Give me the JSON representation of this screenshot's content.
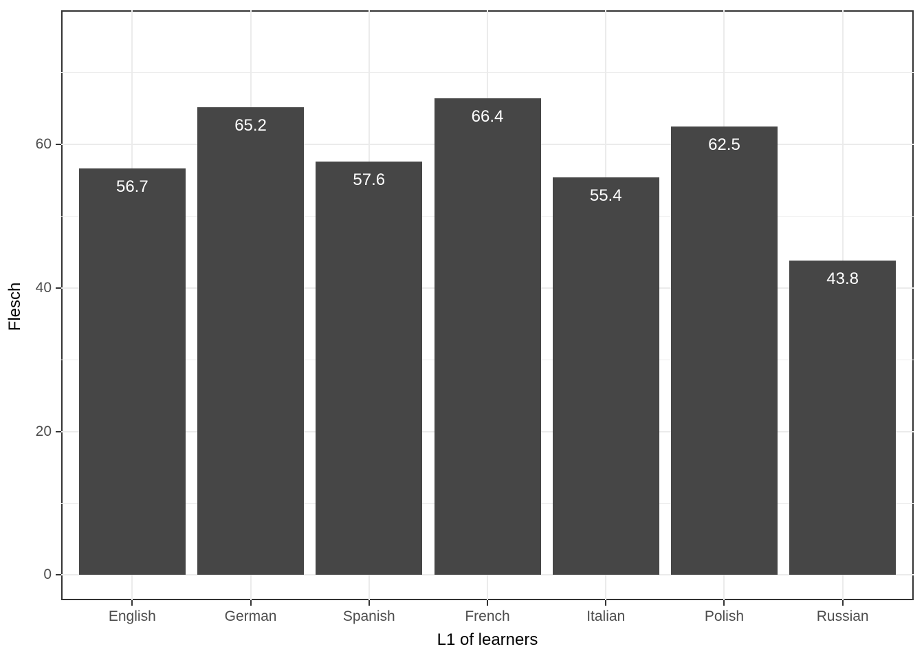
{
  "figure": {
    "background": "#FFFFFF"
  },
  "chart_data": {
    "type": "bar",
    "title": "",
    "xlabel": "L1 of learners",
    "ylabel": "Flesch",
    "categories": [
      "English",
      "German",
      "Spanish",
      "French",
      "Italian",
      "Polish",
      "Russian"
    ],
    "values": [
      56.7,
      65.2,
      57.6,
      66.4,
      55.4,
      62.5,
      43.8
    ],
    "bar_labels": [
      "56.7",
      "65.2",
      "57.6",
      "66.4",
      "55.4",
      "62.5",
      "43.8"
    ],
    "ytick_labels": [
      "0",
      "20",
      "40",
      "60"
    ],
    "yticks_major": [
      0,
      20,
      40,
      60
    ],
    "yticks_minor": [
      10,
      30,
      50,
      70
    ],
    "ylim": [
      -3.5,
      78.7
    ],
    "bar_width_fraction": 0.9,
    "grid": "on",
    "legend": "none"
  },
  "colors": {
    "bar_fill": "#464646",
    "bar_label": "#FFFFFF",
    "panel_border": "#333333",
    "gridline_major": "#EBEBEB",
    "gridline_minor": "#EDEDED",
    "tick_mark": "#333333",
    "tick_label": "#4D4D4D",
    "axis_title": "#000000",
    "panel_background": "#FFFFFF"
  }
}
